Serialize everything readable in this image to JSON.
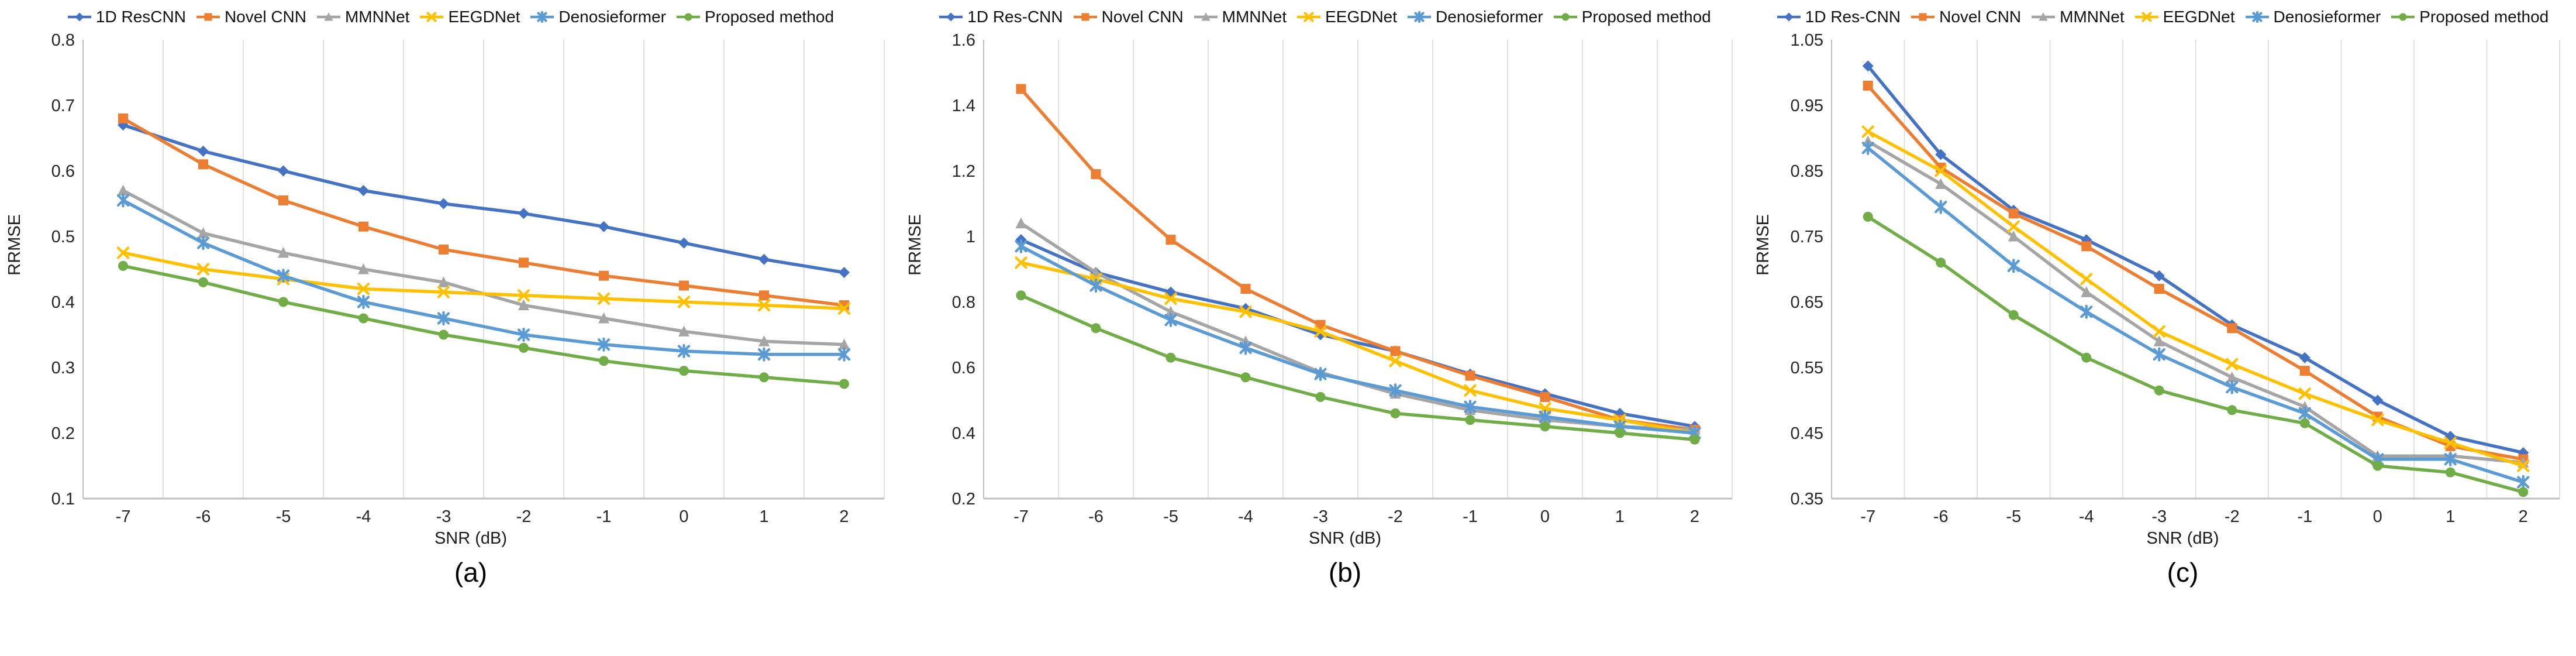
{
  "figure_title": "",
  "chart_data": [
    {
      "type": "line",
      "caption": "(a)",
      "xlabel": "SNR (dB)",
      "ylabel": "RRMSE",
      "x_categories": [
        "-7",
        "-6",
        "-5",
        "-4",
        "-3",
        "-2",
        "-1",
        "0",
        "1",
        "2"
      ],
      "ylim": [
        0.1,
        0.8
      ],
      "yticks": [
        "0.8",
        "0.7",
        "0.6",
        "0.5",
        "0.4",
        "0.3",
        "0.2",
        "0.1"
      ],
      "grid": "vertical-only",
      "legend_position": "top",
      "axis_color": "#bfbfbf",
      "gridline_color": "#d9d9d9",
      "series": [
        {
          "name": "1D ResCNN",
          "color": "#4472C4",
          "marker": "diamond",
          "values": [
            0.67,
            0.63,
            0.6,
            0.57,
            0.55,
            0.535,
            0.515,
            0.49,
            0.465,
            0.445
          ]
        },
        {
          "name": "Novel CNN",
          "color": "#ED7D31",
          "marker": "square",
          "values": [
            0.68,
            0.61,
            0.555,
            0.515,
            0.48,
            0.46,
            0.44,
            0.425,
            0.41,
            0.395
          ]
        },
        {
          "name": "MMNNet",
          "color": "#A5A5A5",
          "marker": "triangle",
          "values": [
            0.57,
            0.505,
            0.475,
            0.45,
            0.43,
            0.395,
            0.375,
            0.355,
            0.34,
            0.335
          ]
        },
        {
          "name": "EEGDNet",
          "color": "#FFC000",
          "marker": "x",
          "values": [
            0.475,
            0.45,
            0.435,
            0.42,
            0.415,
            0.41,
            0.405,
            0.4,
            0.395,
            0.39
          ]
        },
        {
          "name": "Denosieformer",
          "color": "#5B9BD5",
          "marker": "asterisk",
          "values": [
            0.555,
            0.49,
            0.44,
            0.4,
            0.375,
            0.35,
            0.335,
            0.325,
            0.32,
            0.32
          ]
        },
        {
          "name": "Proposed method",
          "color": "#70AD47",
          "marker": "circle",
          "values": [
            0.455,
            0.43,
            0.4,
            0.375,
            0.35,
            0.33,
            0.31,
            0.295,
            0.285,
            0.275
          ]
        }
      ]
    },
    {
      "type": "line",
      "caption": "(b)",
      "xlabel": "SNR (dB)",
      "ylabel": "RRMSE",
      "x_categories": [
        "-7",
        "-6",
        "-5",
        "-4",
        "-3",
        "-2",
        "-1",
        "0",
        "1",
        "2"
      ],
      "ylim": [
        0.2,
        1.6
      ],
      "yticks": [
        "1.6",
        "1.4",
        "1.2",
        "1",
        "0.8",
        "0.6",
        "0.4",
        "0.2"
      ],
      "grid": "vertical-only",
      "legend_position": "top",
      "axis_color": "#bfbfbf",
      "gridline_color": "#d9d9d9",
      "series": [
        {
          "name": "1D Res-CNN",
          "color": "#4472C4",
          "marker": "diamond",
          "values": [
            0.99,
            0.89,
            0.83,
            0.78,
            0.7,
            0.65,
            0.58,
            0.52,
            0.46,
            0.42
          ]
        },
        {
          "name": "Novel CNN",
          "color": "#ED7D31",
          "marker": "square",
          "values": [
            1.45,
            1.19,
            0.99,
            0.84,
            0.73,
            0.65,
            0.575,
            0.51,
            0.44,
            0.41
          ]
        },
        {
          "name": "MMNNet",
          "color": "#A5A5A5",
          "marker": "triangle",
          "values": [
            1.04,
            0.89,
            0.77,
            0.68,
            0.585,
            0.52,
            0.47,
            0.44,
            0.42,
            0.41
          ]
        },
        {
          "name": "EEGDNet",
          "color": "#FFC000",
          "marker": "x",
          "values": [
            0.92,
            0.87,
            0.81,
            0.77,
            0.71,
            0.62,
            0.53,
            0.475,
            0.44,
            0.4
          ]
        },
        {
          "name": "Denosieformer",
          "color": "#5B9BD5",
          "marker": "asterisk",
          "values": [
            0.97,
            0.85,
            0.745,
            0.66,
            0.58,
            0.53,
            0.48,
            0.45,
            0.42,
            0.4
          ]
        },
        {
          "name": "Proposed method",
          "color": "#70AD47",
          "marker": "circle",
          "values": [
            0.82,
            0.72,
            0.63,
            0.57,
            0.51,
            0.46,
            0.44,
            0.42,
            0.4,
            0.38
          ]
        }
      ]
    },
    {
      "type": "line",
      "caption": "(c)",
      "xlabel": "SNR (dB)",
      "ylabel": "RRMSE",
      "x_categories": [
        "-7",
        "-6",
        "-5",
        "-4",
        "-3",
        "-2",
        "-1",
        "0",
        "1",
        "2"
      ],
      "ylim": [
        0.35,
        1.05
      ],
      "yticks": [
        "1.05",
        "0.95",
        "0.85",
        "0.75",
        "0.65",
        "0.55",
        "0.45",
        "0.35"
      ],
      "grid": "vertical-only",
      "legend_position": "top",
      "axis_color": "#bfbfbf",
      "gridline_color": "#d9d9d9",
      "series": [
        {
          "name": "1D Res-CNN",
          "color": "#4472C4",
          "marker": "diamond",
          "values": [
            1.01,
            0.875,
            0.79,
            0.745,
            0.69,
            0.615,
            0.565,
            0.5,
            0.445,
            0.42
          ]
        },
        {
          "name": "Novel CNN",
          "color": "#ED7D31",
          "marker": "square",
          "values": [
            0.98,
            0.855,
            0.785,
            0.735,
            0.67,
            0.61,
            0.545,
            0.475,
            0.43,
            0.41
          ]
        },
        {
          "name": "MMNNet",
          "color": "#A5A5A5",
          "marker": "triangle",
          "values": [
            0.895,
            0.83,
            0.75,
            0.665,
            0.59,
            0.535,
            0.49,
            0.415,
            0.415,
            0.405
          ]
        },
        {
          "name": "EEGDNet",
          "color": "#FFC000",
          "marker": "x",
          "values": [
            0.91,
            0.85,
            0.765,
            0.685,
            0.605,
            0.555,
            0.51,
            0.47,
            0.435,
            0.4
          ]
        },
        {
          "name": "Denosieformer",
          "color": "#5B9BD5",
          "marker": "asterisk",
          "values": [
            0.885,
            0.795,
            0.705,
            0.635,
            0.57,
            0.52,
            0.48,
            0.41,
            0.41,
            0.375
          ]
        },
        {
          "name": "Proposed method",
          "color": "#70AD47",
          "marker": "circle",
          "values": [
            0.78,
            0.71,
            0.63,
            0.565,
            0.515,
            0.485,
            0.465,
            0.4,
            0.39,
            0.36
          ]
        }
      ]
    }
  ]
}
